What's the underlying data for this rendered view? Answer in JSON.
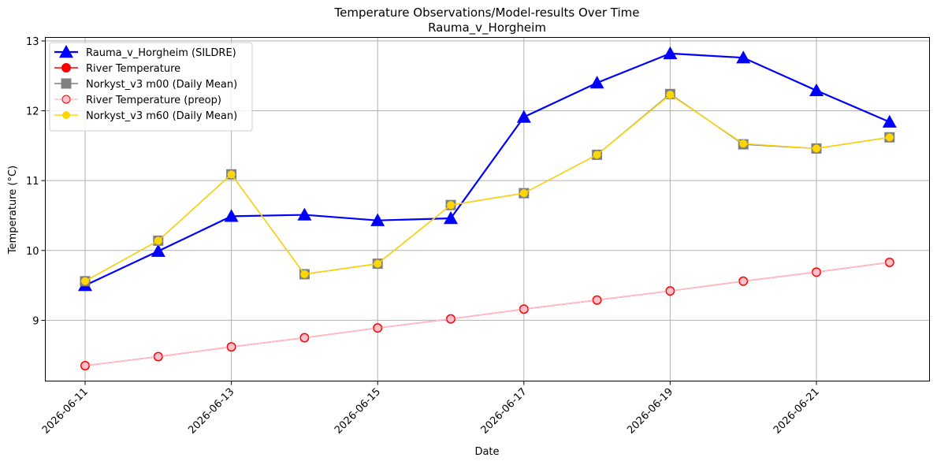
{
  "chart_data": {
    "type": "line",
    "title": "Temperature Observations/Model-results Over Time",
    "subtitle": "Rauma_v_Horgheim",
    "xlabel": "Date",
    "ylabel": "Temperature (°C)",
    "x": [
      "2026-06-11",
      "2026-06-12",
      "2026-06-13",
      "2026-06-14",
      "2026-06-15",
      "2026-06-16",
      "2026-06-17",
      "2026-06-18",
      "2026-06-19",
      "2026-06-20",
      "2026-06-21",
      "2026-06-22"
    ],
    "x_tick_labels": [
      "2026-06-11",
      "2026-06-13",
      "2026-06-15",
      "2026-06-17",
      "2026-06-19",
      "2026-06-21"
    ],
    "y_ticks": [
      9,
      10,
      11,
      12,
      13
    ],
    "ylim": [
      8.13,
      13.05
    ],
    "grid": true,
    "legend_position": "upper-left",
    "series": [
      {
        "name": "Rauma_v_Horgheim (SILDRE)",
        "color": "#0000ff",
        "marker": "triangle",
        "values": [
          9.5,
          9.99,
          10.49,
          10.51,
          10.43,
          10.46,
          11.91,
          12.4,
          12.82,
          12.76,
          12.29,
          11.84
        ]
      },
      {
        "name": "River Temperature",
        "color": "#ff0000",
        "marker": "circle",
        "values": [
          8.35,
          8.48,
          8.62,
          8.75,
          8.89,
          9.02,
          9.16,
          9.29,
          9.42,
          9.56,
          9.69,
          9.83
        ]
      },
      {
        "name": "Norkyst_v3 m00 (Daily Mean)",
        "color": "#808080",
        "marker": "square",
        "values": [
          9.56,
          10.14,
          11.09,
          9.66,
          9.81,
          10.65,
          10.82,
          11.37,
          12.24,
          11.52,
          11.46,
          11.62
        ]
      },
      {
        "name": "River Temperature (preop)",
        "color": "#ffc0cb",
        "marker": "circle",
        "values": [
          8.35,
          8.48,
          8.62,
          8.75,
          8.89,
          9.02,
          9.16,
          9.29,
          9.42,
          9.56,
          9.69,
          9.83
        ]
      },
      {
        "name": "Norkyst_v3 m60 (Daily Mean)",
        "color": "#ffd700",
        "marker": "circle",
        "values": [
          9.56,
          10.14,
          11.09,
          9.66,
          9.81,
          10.65,
          10.82,
          11.37,
          12.23,
          11.53,
          11.46,
          11.62
        ]
      }
    ]
  }
}
